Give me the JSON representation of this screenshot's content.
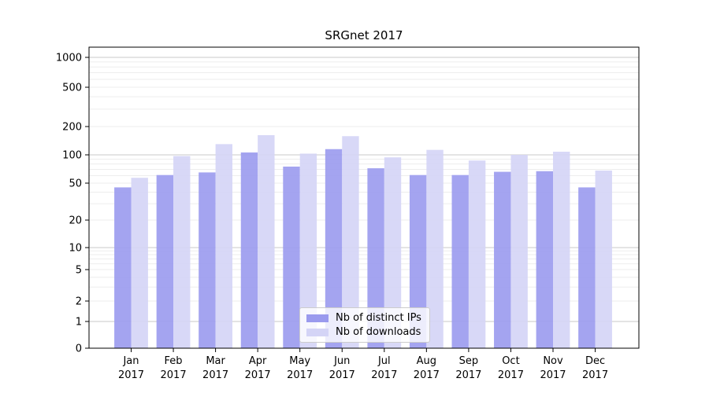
{
  "title": "SRGnet 2017",
  "legend": {
    "items": [
      {
        "label": "Nb of distinct IPs",
        "color": "#9a9aee"
      },
      {
        "label": "Nb of downloads",
        "color": "#d4d4f6"
      }
    ]
  },
  "chart_data": {
    "type": "bar",
    "title": "SRGnet 2017",
    "categories": [
      "Jan 2017",
      "Feb 2017",
      "Mar 2017",
      "Apr 2017",
      "May 2017",
      "Jun 2017",
      "Jul 2017",
      "Aug 2017",
      "Sep 2017",
      "Oct 2017",
      "Nov 2017",
      "Dec 2017"
    ],
    "series": [
      {
        "name": "Nb of distinct IPs",
        "color": "#9a9aee",
        "values": [
          45,
          61,
          65,
          106,
          75,
          115,
          72,
          61,
          61,
          66,
          67,
          45
        ]
      },
      {
        "name": "Nb of downloads",
        "color": "#d4d4f6",
        "values": [
          57,
          97,
          130,
          162,
          103,
          158,
          94,
          113,
          87,
          100,
          108,
          68
        ]
      }
    ],
    "bar_alpha": 0.9,
    "xlabel": "",
    "ylabel": "",
    "yscale": "symlog",
    "yticks": [
      0,
      1,
      2,
      5,
      10,
      20,
      50,
      100,
      200,
      500,
      1000
    ],
    "ylim": [
      0,
      1300
    ],
    "grid": "on",
    "grid_major_color": "#c8c8c8",
    "grid_minor_color": "#ededed",
    "legend_position": "lower-center-inside"
  }
}
